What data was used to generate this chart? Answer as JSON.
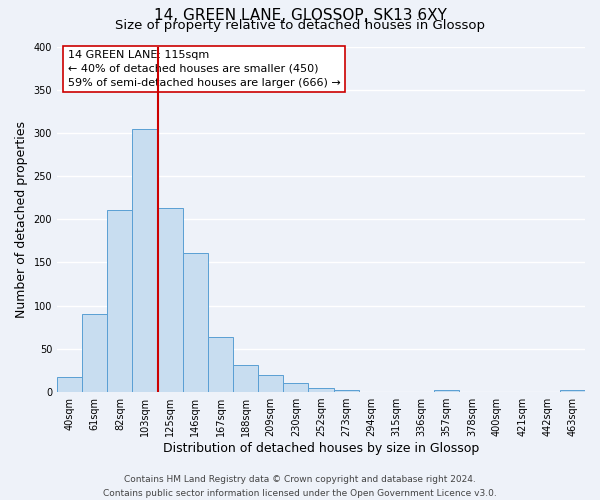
{
  "title": "14, GREEN LANE, GLOSSOP, SK13 6XY",
  "subtitle": "Size of property relative to detached houses in Glossop",
  "xlabel": "Distribution of detached houses by size in Glossop",
  "ylabel": "Number of detached properties",
  "bar_labels": [
    "40sqm",
    "61sqm",
    "82sqm",
    "103sqm",
    "125sqm",
    "146sqm",
    "167sqm",
    "188sqm",
    "209sqm",
    "230sqm",
    "252sqm",
    "273sqm",
    "294sqm",
    "315sqm",
    "336sqm",
    "357sqm",
    "378sqm",
    "400sqm",
    "421sqm",
    "442sqm",
    "463sqm"
  ],
  "bar_values": [
    17,
    90,
    211,
    305,
    213,
    161,
    64,
    31,
    20,
    10,
    5,
    2,
    0,
    0,
    0,
    2,
    0,
    0,
    0,
    0,
    2
  ],
  "bar_color": "#c8ddf0",
  "bar_edge_color": "#5a9fd4",
  "vline_x_index": 3,
  "vline_color": "#cc0000",
  "annotation_line1": "14 GREEN LANE: 115sqm",
  "annotation_line2": "← 40% of detached houses are smaller (450)",
  "annotation_line3": "59% of semi-detached houses are larger (666) →",
  "annotation_box_color": "#ffffff",
  "annotation_box_edge": "#cc0000",
  "footer_line1": "Contains HM Land Registry data © Crown copyright and database right 2024.",
  "footer_line2": "Contains public sector information licensed under the Open Government Licence v3.0.",
  "ylim": [
    0,
    400
  ],
  "yticks": [
    0,
    50,
    100,
    150,
    200,
    250,
    300,
    350,
    400
  ],
  "background_color": "#eef2f9",
  "grid_color": "#ffffff",
  "title_fontsize": 11,
  "subtitle_fontsize": 9.5,
  "axis_label_fontsize": 9,
  "tick_fontsize": 7,
  "annotation_fontsize": 8,
  "footer_fontsize": 6.5
}
